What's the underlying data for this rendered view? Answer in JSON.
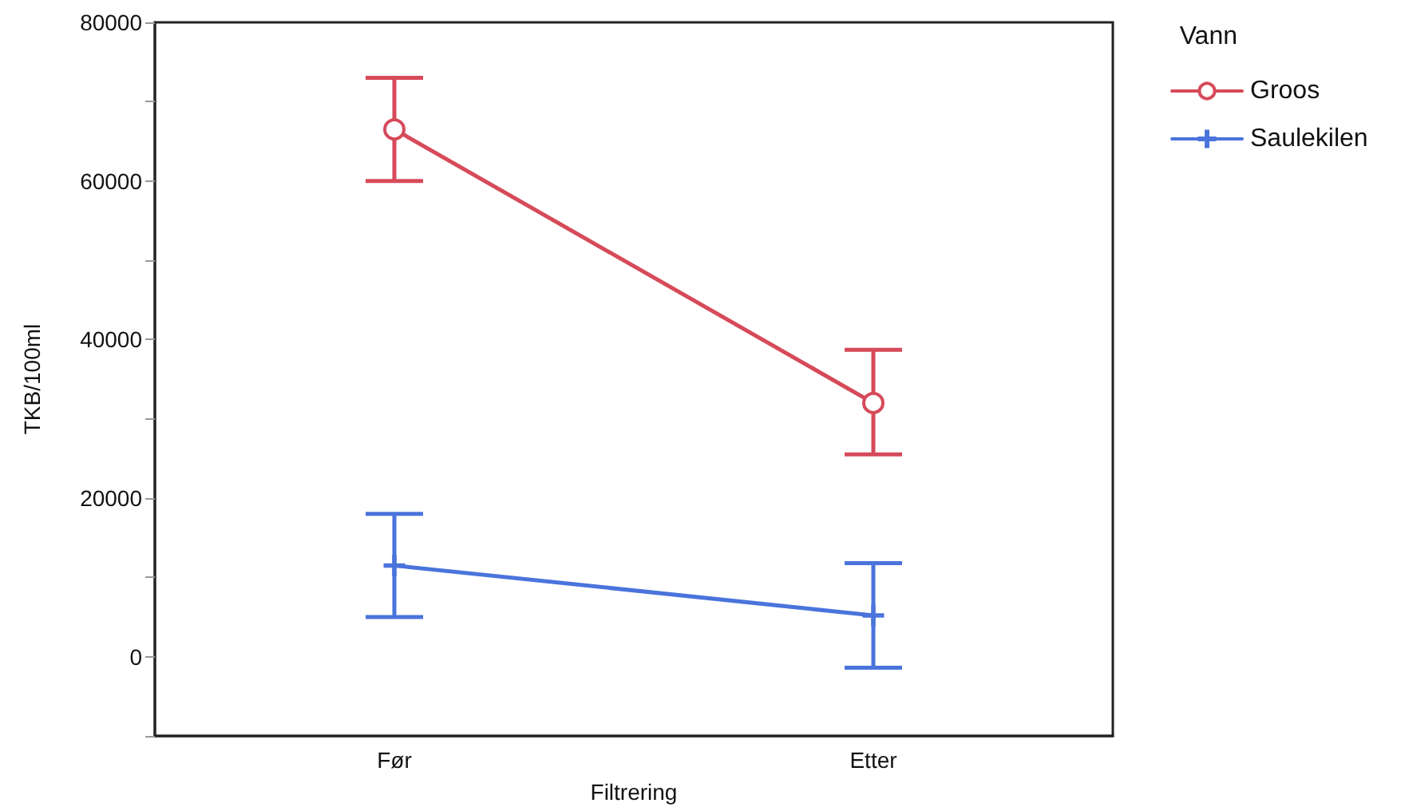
{
  "chart_data": {
    "type": "line",
    "xlabel": "Filtrering",
    "ylabel": "TKB/100ml",
    "legend_title": "Vann",
    "categories": [
      "Før",
      "Etter"
    ],
    "series": [
      {
        "name": "Groos",
        "color": "#d64a5a",
        "marker": "circle",
        "values": [
          66500,
          32000
        ],
        "errors": [
          [
            60000,
            73000
          ],
          [
            25500,
            38700
          ]
        ]
      },
      {
        "name": "Saulekilen",
        "color": "#4a74dc",
        "marker": "cross",
        "values": [
          11500,
          5200
        ],
        "errors": [
          [
            5000,
            18000
          ],
          [
            -1400,
            11800
          ]
        ]
      }
    ],
    "ylim": [
      -10000,
      80000
    ],
    "yticks": [
      {
        "value": -10000,
        "label": null
      },
      0,
      {
        "value": 10000,
        "label": null
      },
      20000,
      {
        "value": 30000,
        "label": null
      },
      40000,
      {
        "value": 50000,
        "label": null
      },
      60000,
      {
        "value": 70000,
        "label": null
      },
      80000
    ],
    "grid": false,
    "legend": "top right",
    "line_style": "solid"
  }
}
